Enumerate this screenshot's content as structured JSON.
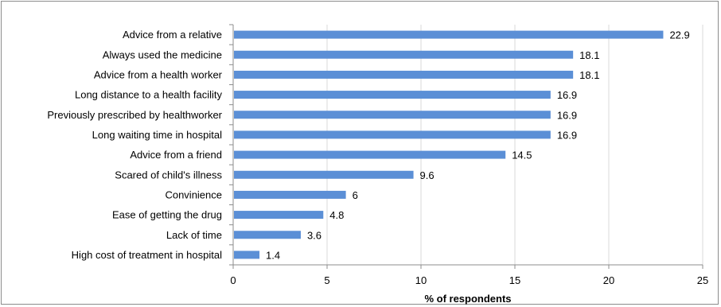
{
  "chart_data": {
    "type": "bar",
    "orientation": "horizontal",
    "title": "",
    "xlabel": "% of respondents",
    "ylabel": "",
    "xlim": [
      0,
      25
    ],
    "xticks": [
      0,
      5,
      10,
      15,
      20,
      25
    ],
    "grid": "vertical",
    "legend": "none",
    "bar_color": "#5b8fd6",
    "categories": [
      "Advice from a relative",
      "Always used the medicine",
      "Advice from a health worker",
      "Long distance to a health facility",
      "Previously prescribed by healthworker",
      "Long waiting time in hospital",
      "Advice from a friend",
      "Scared of child's illness",
      "Convinience",
      "Ease of getting the drug",
      "Lack of time",
      "High cost of treatment in hospital"
    ],
    "values": [
      22.9,
      18.1,
      18.1,
      16.9,
      16.9,
      16.9,
      14.5,
      9.6,
      6,
      4.8,
      3.6,
      1.4
    ],
    "value_labels": [
      "22.9",
      "18.1",
      "18.1",
      "16.9",
      "16.9",
      "16.9",
      "14.5",
      "9.6",
      "6",
      "4.8",
      "3.6",
      "1.4"
    ]
  }
}
